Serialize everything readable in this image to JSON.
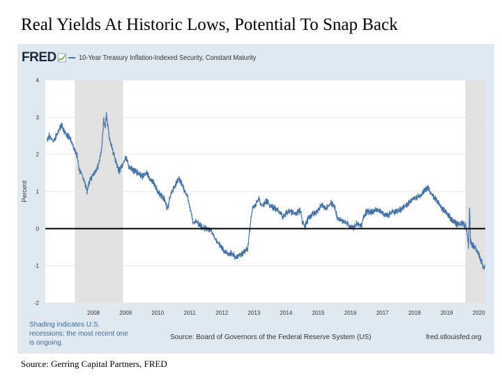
{
  "slide": {
    "title": "Real Yields At Historic Lows, Potential To Snap Back",
    "source": "Source: Gerring Capital Partners, FRED"
  },
  "panel": {
    "logo": "FRED",
    "footnote": "Shading indicates U.S. recessions; the most recent one is ongoing.",
    "source": "Source: Board of Governors of the Federal Reserve System (US)",
    "url": "fred.stlouisfed.org",
    "colors": {
      "background": "#e1e9f0",
      "plot": "#ffffff",
      "recession": "#e1e1e1",
      "line": "#4572a7",
      "zero_line": "#000000"
    }
  },
  "chart_data": {
    "type": "line",
    "series": [
      {
        "name": "10-Year Treasury Inflation-Indexed Security, Constant Maturity",
        "points": [
          [
            2007.05,
            2.4
          ],
          [
            2007.12,
            2.5
          ],
          [
            2007.25,
            2.35
          ],
          [
            2007.4,
            2.6
          ],
          [
            2007.5,
            2.8
          ],
          [
            2007.6,
            2.6
          ],
          [
            2007.75,
            2.45
          ],
          [
            2007.9,
            2.15
          ],
          [
            2008.0,
            1.95
          ],
          [
            2008.05,
            1.6
          ],
          [
            2008.15,
            1.45
          ],
          [
            2008.2,
            1.3
          ],
          [
            2008.3,
            1.0
          ],
          [
            2008.4,
            1.35
          ],
          [
            2008.55,
            1.5
          ],
          [
            2008.65,
            1.7
          ],
          [
            2008.75,
            2.1
          ],
          [
            2008.82,
            2.95
          ],
          [
            2008.86,
            2.65
          ],
          [
            2008.9,
            3.1
          ],
          [
            2008.95,
            2.75
          ],
          [
            2009.0,
            2.4
          ],
          [
            2009.1,
            2.1
          ],
          [
            2009.2,
            1.8
          ],
          [
            2009.3,
            1.55
          ],
          [
            2009.4,
            1.7
          ],
          [
            2009.5,
            1.9
          ],
          [
            2009.6,
            1.7
          ],
          [
            2009.75,
            1.55
          ],
          [
            2009.9,
            1.5
          ],
          [
            2010.0,
            1.4
          ],
          [
            2010.15,
            1.5
          ],
          [
            2010.25,
            1.35
          ],
          [
            2010.4,
            1.2
          ],
          [
            2010.5,
            1.0
          ],
          [
            2010.6,
            0.9
          ],
          [
            2010.7,
            0.8
          ],
          [
            2010.8,
            0.5
          ],
          [
            2010.9,
            0.9
          ],
          [
            2011.0,
            1.1
          ],
          [
            2011.1,
            1.25
          ],
          [
            2011.15,
            1.35
          ],
          [
            2011.3,
            1.1
          ],
          [
            2011.45,
            0.8
          ],
          [
            2011.55,
            0.4
          ],
          [
            2011.62,
            0.1
          ],
          [
            2011.7,
            0.2
          ],
          [
            2011.85,
            0.05
          ],
          [
            2012.0,
            0.0
          ],
          [
            2012.15,
            -0.05
          ],
          [
            2012.3,
            -0.3
          ],
          [
            2012.45,
            -0.45
          ],
          [
            2012.55,
            -0.6
          ],
          [
            2012.7,
            -0.7
          ],
          [
            2012.8,
            -0.65
          ],
          [
            2012.95,
            -0.8
          ],
          [
            2013.05,
            -0.7
          ],
          [
            2013.15,
            -0.65
          ],
          [
            2013.3,
            -0.55
          ],
          [
            2013.37,
            0.0
          ],
          [
            2013.45,
            0.55
          ],
          [
            2013.55,
            0.65
          ],
          [
            2013.65,
            0.8
          ],
          [
            2013.75,
            0.6
          ],
          [
            2013.9,
            0.75
          ],
          [
            2014.0,
            0.6
          ],
          [
            2014.15,
            0.55
          ],
          [
            2014.3,
            0.45
          ],
          [
            2014.4,
            0.3
          ],
          [
            2014.55,
            0.45
          ],
          [
            2014.7,
            0.45
          ],
          [
            2014.8,
            0.4
          ],
          [
            2014.95,
            0.5
          ],
          [
            2015.0,
            0.2
          ],
          [
            2015.08,
            0.05
          ],
          [
            2015.2,
            0.3
          ],
          [
            2015.35,
            0.4
          ],
          [
            2015.5,
            0.5
          ],
          [
            2015.6,
            0.65
          ],
          [
            2015.75,
            0.55
          ],
          [
            2015.9,
            0.7
          ],
          [
            2016.0,
            0.6
          ],
          [
            2016.1,
            0.3
          ],
          [
            2016.25,
            0.2
          ],
          [
            2016.4,
            0.15
          ],
          [
            2016.5,
            0.05
          ],
          [
            2016.6,
            0.0
          ],
          [
            2016.7,
            0.15
          ],
          [
            2016.85,
            0.05
          ],
          [
            2016.9,
            0.3
          ],
          [
            2017.0,
            0.45
          ],
          [
            2017.2,
            0.45
          ],
          [
            2017.35,
            0.5
          ],
          [
            2017.5,
            0.4
          ],
          [
            2017.65,
            0.35
          ],
          [
            2017.8,
            0.45
          ],
          [
            2017.95,
            0.45
          ],
          [
            2018.1,
            0.55
          ],
          [
            2018.25,
            0.65
          ],
          [
            2018.4,
            0.75
          ],
          [
            2018.55,
            0.85
          ],
          [
            2018.7,
            0.9
          ],
          [
            2018.8,
            1.05
          ],
          [
            2018.9,
            1.1
          ],
          [
            2019.0,
            0.95
          ],
          [
            2019.15,
            0.8
          ],
          [
            2019.3,
            0.6
          ],
          [
            2019.45,
            0.45
          ],
          [
            2019.6,
            0.3
          ],
          [
            2019.75,
            0.15
          ],
          [
            2019.9,
            0.1
          ],
          [
            2020.0,
            0.15
          ],
          [
            2020.1,
            0.05
          ],
          [
            2020.18,
            -0.45
          ],
          [
            2020.21,
            0.6
          ],
          [
            2020.24,
            -0.35
          ],
          [
            2020.3,
            -0.45
          ],
          [
            2020.4,
            -0.5
          ],
          [
            2020.5,
            -0.7
          ],
          [
            2020.58,
            -0.9
          ],
          [
            2020.65,
            -1.05
          ],
          [
            2020.7,
            -1.0
          ]
        ]
      }
    ],
    "xlabel": "",
    "ylabel": "Percent",
    "xlim": [
      2007.0,
      2020.7
    ],
    "ylim": [
      -2,
      4
    ],
    "x_ticks": [
      2008,
      2009,
      2010,
      2011,
      2012,
      2013,
      2014,
      2015,
      2016,
      2017,
      2018,
      2019,
      2020
    ],
    "y_ticks": [
      -2,
      -1,
      0,
      1,
      2,
      3,
      4
    ],
    "recessions": [
      [
        2007.92,
        2009.42
      ],
      [
        2020.08,
        2020.7
      ]
    ],
    "reference_line": 0,
    "grid": "horizontal",
    "legend": "top-left"
  }
}
